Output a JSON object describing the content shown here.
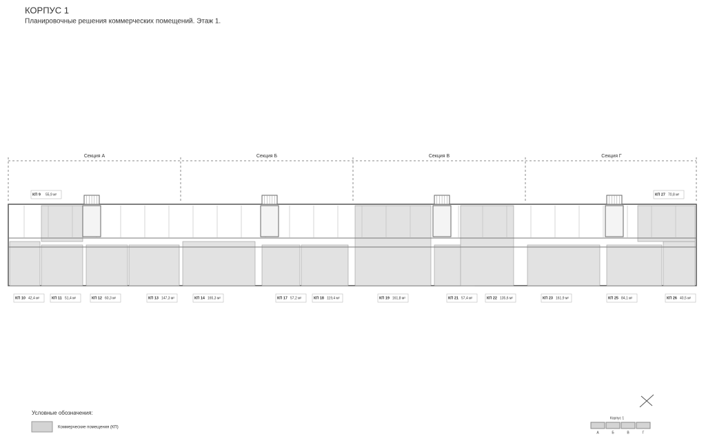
{
  "header": {
    "title": "КОРПУС 1",
    "subtitle": "Планировочные решения коммерческих помещений. Этаж 1."
  },
  "sections": [
    "Секция А",
    "Секция Б",
    "Секция В",
    "Секция Г"
  ],
  "units": [
    {
      "label": "КП 9",
      "area": "55,9 м²"
    },
    {
      "label": "КП 27",
      "area": "70,8 м²"
    },
    {
      "label": "КП 10",
      "area": "42,4 м²"
    },
    {
      "label": "КП 11",
      "area": "51,4 м²"
    },
    {
      "label": "КП 12",
      "area": "60,3 м²"
    },
    {
      "label": "КП 13",
      "area": "147,3 м²"
    },
    {
      "label": "КП 14",
      "area": "165,3 м²"
    },
    {
      "label": "КП 17",
      "area": "57,2 м²"
    },
    {
      "label": "КП 18",
      "area": "119,4 м²"
    },
    {
      "label": "КП 19",
      "area": "161,8 м²"
    },
    {
      "label": "КП 21",
      "area": "57,4 м²"
    },
    {
      "label": "КП 22",
      "area": "135,6 м²"
    },
    {
      "label": "КП 23",
      "area": "161,9 м²"
    },
    {
      "label": "КП 25",
      "area": "84,1 м²"
    },
    {
      "label": "КП 26",
      "area": "40,5 м²"
    }
  ],
  "legend": {
    "title": "Условные обозначения:",
    "item": "Коммерческие помещения (КП)"
  },
  "key_plan": {
    "title": "Корпус 1",
    "letters": [
      "А",
      "Б",
      "В",
      "Г"
    ]
  }
}
